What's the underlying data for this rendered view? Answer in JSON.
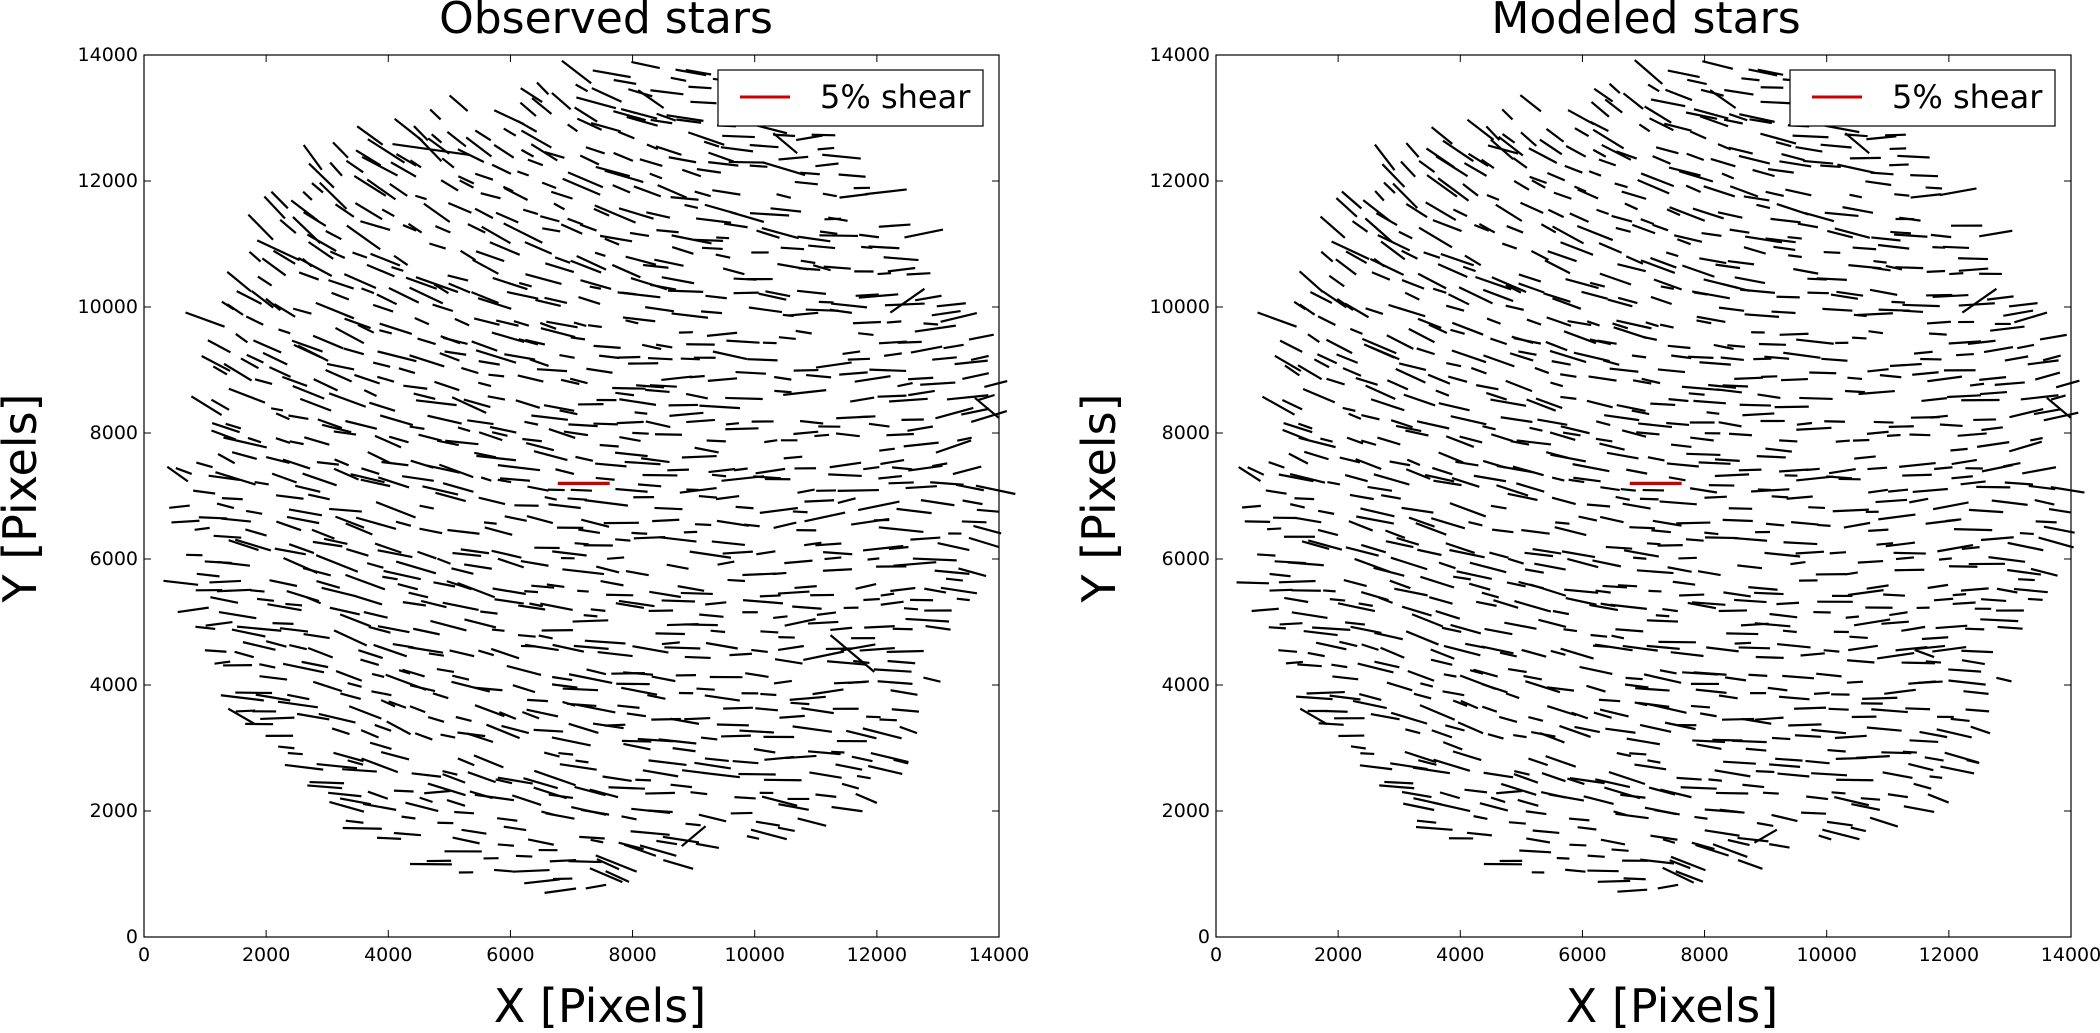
{
  "chart_data": [
    {
      "type": "whisker",
      "title": "Observed stars",
      "xlabel": "X [Pixels]",
      "ylabel": "Y [Pixels]",
      "xlim": [
        0,
        14000
      ],
      "ylim": [
        0,
        14000
      ],
      "xticks": [
        "0",
        "2000",
        "4000",
        "6000",
        "8000",
        "10000",
        "12000",
        "14000"
      ],
      "yticks": [
        "0",
        "2000",
        "4000",
        "6000",
        "8000",
        "10000",
        "12000",
        "14000"
      ],
      "grid": false,
      "legend": {
        "placement": "top-right",
        "label": "5% shear",
        "color": "#cc0000"
      },
      "reference_whisker": {
        "x": 7200,
        "y": 7200,
        "shear": 0.05,
        "angle_deg": 0,
        "length_px_data": 850
      },
      "field": {
        "center": [
          7300,
          7300
        ],
        "radius": 6700,
        "whisker_color": "#000000",
        "scale_px_data_per_shear": 17000
      },
      "whiskers": [
        {
          "x": 1000,
          "y": 9800,
          "shear": 0.04,
          "angle_deg": -20
        },
        {
          "x": 2200,
          "y": 10900,
          "shear": 0.045,
          "angle_deg": -25
        },
        {
          "x": 4700,
          "y": 12500,
          "shear": 0.075,
          "angle_deg": -8
        },
        {
          "x": 8300,
          "y": 13300,
          "shear": 0.03,
          "angle_deg": -35
        },
        {
          "x": 10500,
          "y": 12600,
          "shear": 0.03,
          "angle_deg": -40
        },
        {
          "x": 12500,
          "y": 10100,
          "shear": 0.04,
          "angle_deg": 35
        },
        {
          "x": 13800,
          "y": 8400,
          "shear": 0.03,
          "angle_deg": -40
        },
        {
          "x": 11600,
          "y": 4500,
          "shear": 0.055,
          "angle_deg": -40
        },
        {
          "x": 9000,
          "y": 1600,
          "shear": 0.03,
          "angle_deg": 40
        },
        {
          "x": 7400,
          "y": 800,
          "shear": 0.02,
          "angle_deg": 10
        },
        {
          "x": 4800,
          "y": 2300,
          "shear": 0.025,
          "angle_deg": 5
        },
        {
          "x": 1600,
          "y": 3500,
          "shear": 0.03,
          "angle_deg": -30
        }
      ]
    },
    {
      "type": "whisker",
      "title": "Modeled stars",
      "xlabel": "X [Pixels]",
      "ylabel": "Y [Pixels]",
      "xlim": [
        0,
        14000
      ],
      "ylim": [
        0,
        14000
      ],
      "xticks": [
        "0",
        "2000",
        "4000",
        "6000",
        "8000",
        "10000",
        "12000",
        "14000"
      ],
      "yticks": [
        "0",
        "2000",
        "4000",
        "6000",
        "8000",
        "10000",
        "12000",
        "14000"
      ],
      "grid": false,
      "legend": {
        "placement": "top-right",
        "label": "5% shear",
        "color": "#cc0000"
      },
      "reference_whisker": {
        "x": 7200,
        "y": 7200,
        "shear": 0.05,
        "angle_deg": 0,
        "length_px_data": 850
      },
      "field": {
        "center": [
          7300,
          7300
        ],
        "radius": 6700,
        "whisker_color": "#000000",
        "scale_px_data_per_shear": 17000
      },
      "whiskers": [
        {
          "x": 1000,
          "y": 9800,
          "shear": 0.04,
          "angle_deg": -20
        },
        {
          "x": 2200,
          "y": 10900,
          "shear": 0.04,
          "angle_deg": -25
        },
        {
          "x": 4700,
          "y": 12500,
          "shear": 0.03,
          "angle_deg": -15
        },
        {
          "x": 8300,
          "y": 13300,
          "shear": 0.03,
          "angle_deg": -35
        },
        {
          "x": 10500,
          "y": 12600,
          "shear": 0.03,
          "angle_deg": -40
        },
        {
          "x": 12500,
          "y": 10100,
          "shear": 0.04,
          "angle_deg": 35
        },
        {
          "x": 13800,
          "y": 8400,
          "shear": 0.03,
          "angle_deg": -40
        },
        {
          "x": 11600,
          "y": 4500,
          "shear": 0.02,
          "angle_deg": -20
        },
        {
          "x": 9000,
          "y": 1600,
          "shear": 0.025,
          "angle_deg": 30
        },
        {
          "x": 7400,
          "y": 800,
          "shear": 0.02,
          "angle_deg": 10
        },
        {
          "x": 4800,
          "y": 2300,
          "shear": 0.025,
          "angle_deg": 5
        },
        {
          "x": 1600,
          "y": 3500,
          "shear": 0.03,
          "angle_deg": -30
        }
      ]
    }
  ]
}
